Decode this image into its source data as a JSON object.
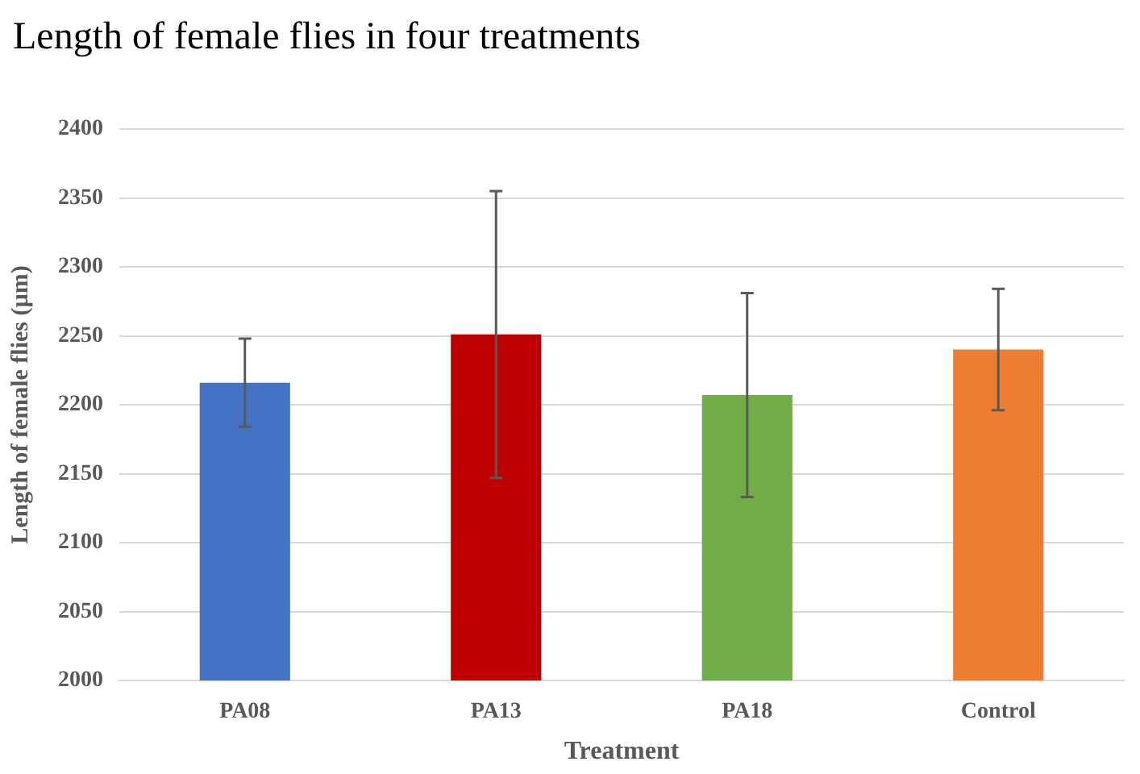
{
  "chart_data": {
    "type": "bar",
    "title": "Length of female flies in four treatments",
    "xlabel": "Treatment",
    "ylabel": "Length of female flies (µm)",
    "categories": [
      "PA08",
      "PA13",
      "PA18",
      "Control"
    ],
    "values": [
      2216,
      2251,
      2207,
      2240
    ],
    "colors": [
      "#4472c4",
      "#c00000",
      "#70ad47",
      "#ed7d31"
    ],
    "errors": [
      32,
      104,
      74,
      44
    ],
    "ylim": [
      2000,
      2400
    ],
    "yticks": [
      2000,
      2050,
      2100,
      2150,
      2200,
      2250,
      2300,
      2350,
      2400
    ],
    "grid": "y",
    "legend": false
  }
}
